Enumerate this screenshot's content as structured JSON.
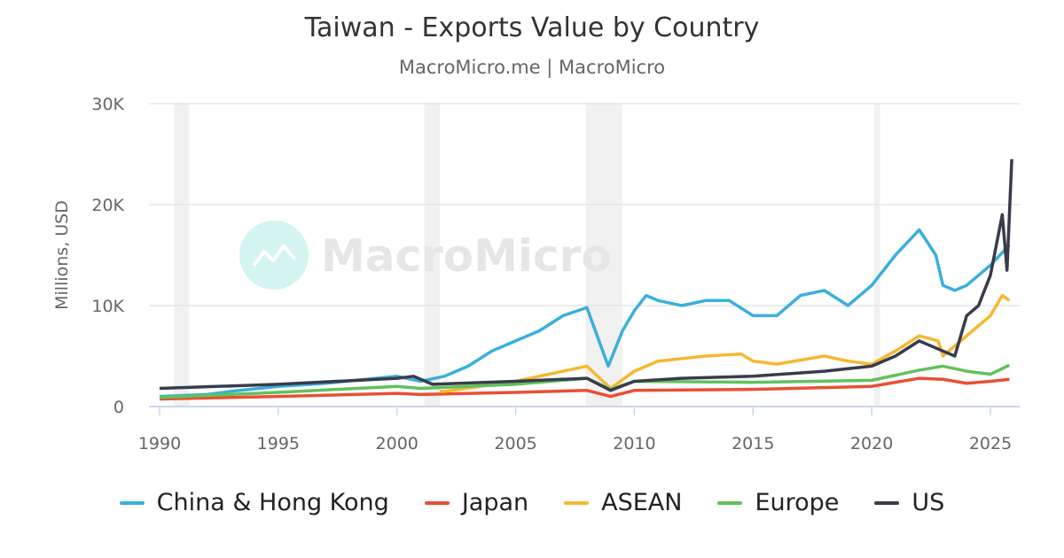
{
  "chart_data": {
    "type": "line",
    "title": "Taiwan - Exports Value by Country",
    "subtitle": "MacroMicro.me | MacroMicro",
    "ylabel": "Millions, USD",
    "xlabel": "",
    "xlim": [
      1990,
      2026.2
    ],
    "ylim": [
      0,
      30000
    ],
    "x_ticks": [
      "1990",
      "1995",
      "2000",
      "2005",
      "2010",
      "2015",
      "2020",
      "2025"
    ],
    "y_ticks": [
      "0",
      "10K",
      "20K",
      "30K"
    ],
    "grid": "horizontal",
    "legend_position": "bottom",
    "watermark": "MacroMicro",
    "recession_bands": [
      [
        1990.6,
        1991.25
      ],
      [
        2001.15,
        2001.8
      ],
      [
        2007.95,
        2009.5
      ],
      [
        2020.1,
        2020.35
      ]
    ],
    "series": [
      {
        "name": "China & Hong Kong",
        "color": "#3aafdc",
        "points": [
          [
            1990,
            1000
          ],
          [
            1992,
            1200
          ],
          [
            1993,
            1500
          ],
          [
            1995,
            2000
          ],
          [
            1997,
            2300
          ],
          [
            2000,
            3000
          ],
          [
            2001,
            2500
          ],
          [
            2002,
            3000
          ],
          [
            2003,
            4000
          ],
          [
            2004,
            5500
          ],
          [
            2005,
            6500
          ],
          [
            2006,
            7500
          ],
          [
            2007,
            9000
          ],
          [
            2008,
            9800
          ],
          [
            2008.9,
            4000
          ],
          [
            2009.5,
            7500
          ],
          [
            2010,
            9500
          ],
          [
            2010.5,
            11000
          ],
          [
            2011,
            10500
          ],
          [
            2012,
            10000
          ],
          [
            2013,
            10500
          ],
          [
            2014,
            10500
          ],
          [
            2015,
            9000
          ],
          [
            2016,
            9000
          ],
          [
            2017,
            11000
          ],
          [
            2018,
            11500
          ],
          [
            2019,
            10000
          ],
          [
            2020,
            12000
          ],
          [
            2021,
            15000
          ],
          [
            2021.8,
            17000
          ],
          [
            2022,
            17500
          ],
          [
            2022.7,
            15000
          ],
          [
            2023,
            12000
          ],
          [
            2023.5,
            11500
          ],
          [
            2024,
            12000
          ],
          [
            2024.5,
            13000
          ],
          [
            2025,
            14000
          ],
          [
            2025.8,
            16000
          ]
        ]
      },
      {
        "name": "Japan",
        "color": "#e94f35",
        "points": [
          [
            1990,
            750
          ],
          [
            1995,
            1000
          ],
          [
            2000,
            1300
          ],
          [
            2001,
            1200
          ],
          [
            2005,
            1400
          ],
          [
            2008,
            1600
          ],
          [
            2009,
            1000
          ],
          [
            2010,
            1600
          ],
          [
            2015,
            1700
          ],
          [
            2020,
            2000
          ],
          [
            2022,
            2800
          ],
          [
            2023,
            2700
          ],
          [
            2024,
            2300
          ],
          [
            2025,
            2500
          ],
          [
            2025.8,
            2700
          ]
        ]
      },
      {
        "name": "ASEAN",
        "color": "#f7b731",
        "points": [
          [
            2001.8,
            1500
          ],
          [
            2002,
            1500
          ],
          [
            2005,
            2500
          ],
          [
            2007,
            3500
          ],
          [
            2008,
            4000
          ],
          [
            2009,
            1800
          ],
          [
            2010,
            3500
          ],
          [
            2011,
            4500
          ],
          [
            2013,
            5000
          ],
          [
            2014.5,
            5200
          ],
          [
            2015,
            4500
          ],
          [
            2016,
            4200
          ],
          [
            2018,
            5000
          ],
          [
            2019,
            4500
          ],
          [
            2020,
            4200
          ],
          [
            2021,
            5500
          ],
          [
            2022,
            7000
          ],
          [
            2022.8,
            6500
          ],
          [
            2023,
            5000
          ],
          [
            2024,
            7000
          ],
          [
            2025,
            9000
          ],
          [
            2025.5,
            11000
          ],
          [
            2025.8,
            10500
          ]
        ]
      },
      {
        "name": "Europe",
        "color": "#62c15c",
        "points": [
          [
            1990,
            900
          ],
          [
            1995,
            1400
          ],
          [
            2000,
            2000
          ],
          [
            2001,
            1800
          ],
          [
            2005,
            2200
          ],
          [
            2008,
            2800
          ],
          [
            2009,
            1700
          ],
          [
            2010,
            2500
          ],
          [
            2015,
            2400
          ],
          [
            2020,
            2600
          ],
          [
            2022,
            3600
          ],
          [
            2023,
            4000
          ],
          [
            2024,
            3500
          ],
          [
            2025,
            3200
          ],
          [
            2025.8,
            4100
          ]
        ]
      },
      {
        "name": "US",
        "color": "#383c4a",
        "points": [
          [
            1990,
            1800
          ],
          [
            1995,
            2200
          ],
          [
            2000,
            2800
          ],
          [
            2000.7,
            3000
          ],
          [
            2001.5,
            2200
          ],
          [
            2005,
            2500
          ],
          [
            2008,
            2800
          ],
          [
            2009,
            1600
          ],
          [
            2010,
            2500
          ],
          [
            2012,
            2800
          ],
          [
            2015,
            3000
          ],
          [
            2018,
            3500
          ],
          [
            2020,
            4000
          ],
          [
            2021,
            5000
          ],
          [
            2022,
            6500
          ],
          [
            2023,
            5500
          ],
          [
            2023.5,
            5000
          ],
          [
            2024,
            9000
          ],
          [
            2024.5,
            10000
          ],
          [
            2025,
            13000
          ],
          [
            2025.5,
            19000
          ],
          [
            2025.7,
            13500
          ],
          [
            2025.9,
            24500
          ]
        ]
      }
    ]
  }
}
